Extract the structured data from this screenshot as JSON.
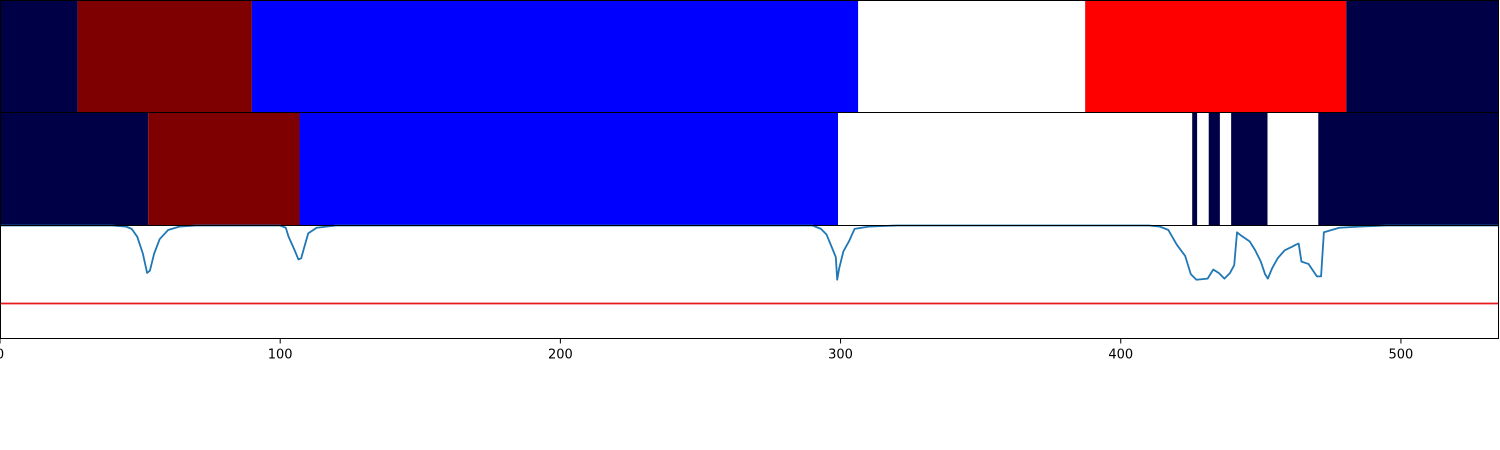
{
  "chart_data": {
    "type": "heatmap",
    "xlim": [
      0,
      535
    ],
    "xticks": [
      0,
      100,
      200,
      300,
      400,
      500
    ],
    "tick_labels": [
      "0",
      "100",
      "200",
      "300",
      "400",
      "500"
    ],
    "grid": false,
    "colors": {
      "navy": "#000046",
      "dark_red": "#7f0000",
      "blue": "#0000ff",
      "white": "#ffffff",
      "red": "#ff0000",
      "line": "#1f77b4",
      "threshold": "#e41a1c",
      "frame": "#000000"
    },
    "rows": [
      {
        "segments": [
          {
            "start": 0,
            "end": 27.7,
            "color": "navy"
          },
          {
            "start": 27.7,
            "end": 89.9,
            "color": "dark_red"
          },
          {
            "start": 89.9,
            "end": 306.3,
            "color": "blue"
          },
          {
            "start": 306.3,
            "end": 387.3,
            "color": "white"
          },
          {
            "start": 387.3,
            "end": 480.5,
            "color": "red"
          },
          {
            "start": 480.5,
            "end": 535,
            "color": "navy"
          }
        ]
      },
      {
        "segments": [
          {
            "start": 0,
            "end": 52.9,
            "color": "navy"
          },
          {
            "start": 52.9,
            "end": 106.9,
            "color": "dark_red"
          },
          {
            "start": 106.9,
            "end": 299.1,
            "color": "blue"
          },
          {
            "start": 299.1,
            "end": 425.5,
            "color": "white"
          },
          {
            "start": 425.5,
            "end": 427.3,
            "color": "navy"
          },
          {
            "start": 427.3,
            "end": 431.4,
            "color": "white"
          },
          {
            "start": 431.4,
            "end": 435.4,
            "color": "navy"
          },
          {
            "start": 435.4,
            "end": 439.4,
            "color": "white"
          },
          {
            "start": 439.4,
            "end": 452.4,
            "color": "navy"
          },
          {
            "start": 452.4,
            "end": 470.5,
            "color": "white"
          },
          {
            "start": 470.5,
            "end": 535,
            "color": "navy"
          }
        ]
      }
    ],
    "line_panel": {
      "ylim": [
        0,
        1
      ],
      "threshold": 0.31,
      "series": [
        [
          0,
          1.0
        ],
        [
          40,
          1.0
        ],
        [
          45,
          0.99
        ],
        [
          47,
          0.97
        ],
        [
          49,
          0.9
        ],
        [
          51,
          0.75
        ],
        [
          52.5,
          0.58
        ],
        [
          53.5,
          0.6
        ],
        [
          55,
          0.75
        ],
        [
          57,
          0.88
        ],
        [
          60,
          0.96
        ],
        [
          64,
          0.99
        ],
        [
          70,
          1.0
        ],
        [
          100,
          1.0
        ],
        [
          102,
          0.98
        ],
        [
          103,
          0.9
        ],
        [
          105,
          0.79
        ],
        [
          106.5,
          0.7
        ],
        [
          107.5,
          0.71
        ],
        [
          108.5,
          0.8
        ],
        [
          110,
          0.93
        ],
        [
          113,
          0.98
        ],
        [
          120,
          1.0
        ],
        [
          290,
          1.0
        ],
        [
          293,
          0.97
        ],
        [
          295,
          0.92
        ],
        [
          297,
          0.8
        ],
        [
          298.3,
          0.72
        ],
        [
          298.8,
          0.52
        ],
        [
          299.5,
          0.62
        ],
        [
          301,
          0.77
        ],
        [
          303,
          0.86
        ],
        [
          305,
          0.97
        ],
        [
          310,
          0.99
        ],
        [
          320,
          1.0
        ],
        [
          410,
          1.0
        ],
        [
          414,
          0.99
        ],
        [
          417,
          0.96
        ],
        [
          420,
          0.83
        ],
        [
          423,
          0.73
        ],
        [
          425,
          0.57
        ],
        [
          427,
          0.52
        ],
        [
          431,
          0.53
        ],
        [
          433,
          0.61
        ],
        [
          435,
          0.58
        ],
        [
          437,
          0.53
        ],
        [
          439,
          0.58
        ],
        [
          440.5,
          0.65
        ],
        [
          441.5,
          0.94
        ],
        [
          443,
          0.91
        ],
        [
          446,
          0.86
        ],
        [
          448,
          0.78
        ],
        [
          450,
          0.68
        ],
        [
          451.5,
          0.57
        ],
        [
          452.5,
          0.53
        ],
        [
          454,
          0.62
        ],
        [
          456,
          0.71
        ],
        [
          458.5,
          0.78
        ],
        [
          461,
          0.81
        ],
        [
          462.5,
          0.83
        ],
        [
          463.5,
          0.84
        ],
        [
          464.5,
          0.68
        ],
        [
          467,
          0.66
        ],
        [
          470,
          0.55
        ],
        [
          471.5,
          0.55
        ],
        [
          472.5,
          0.94
        ],
        [
          478,
          0.98
        ],
        [
          485,
          0.99
        ],
        [
          495,
          1.0
        ],
        [
          535,
          1.0
        ]
      ]
    }
  }
}
